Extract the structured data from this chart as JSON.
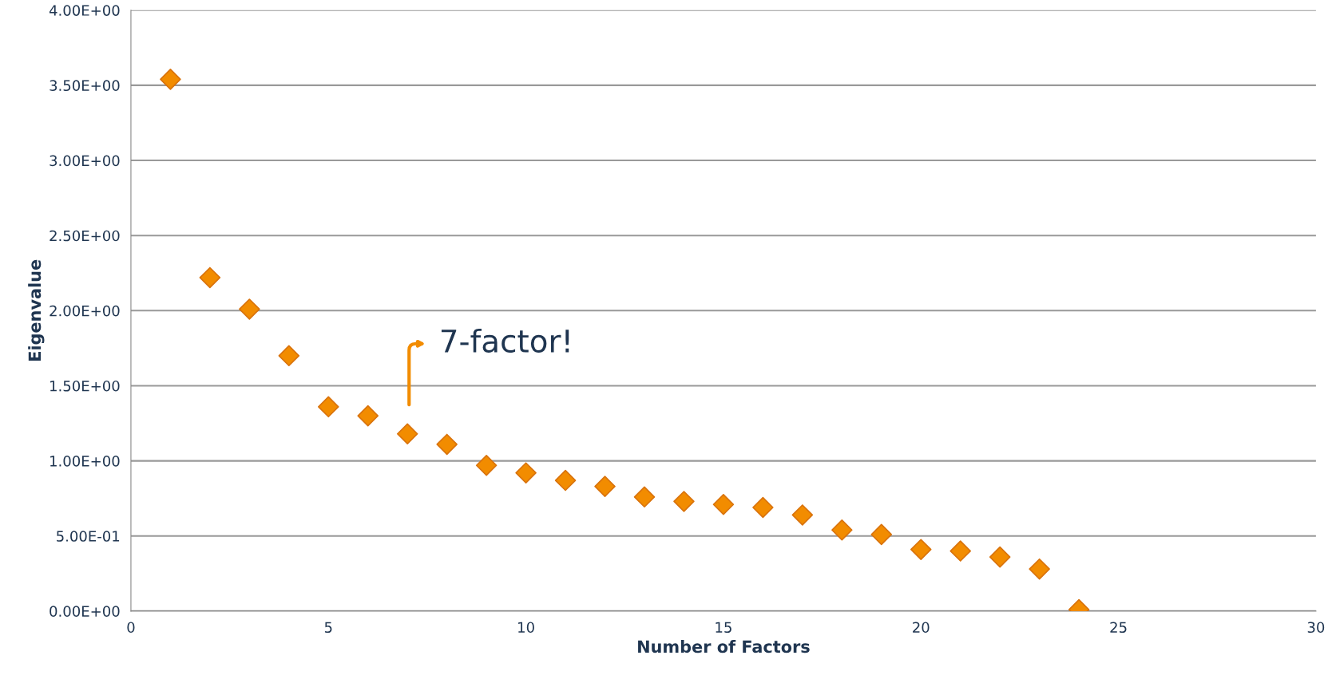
{
  "chart_data": {
    "type": "scatter",
    "xlabel": "Number of Factors",
    "ylabel": "Eigenvalue",
    "x": [
      1,
      2,
      3,
      4,
      5,
      6,
      7,
      8,
      9,
      10,
      11,
      12,
      13,
      14,
      15,
      16,
      17,
      18,
      19,
      20,
      21,
      22,
      23,
      24
    ],
    "series": [
      {
        "color": "#f28c00",
        "values": [
          3.54,
          2.22,
          2.01,
          1.7,
          1.36,
          1.3,
          1.18,
          1.11,
          0.97,
          0.92,
          0.87,
          0.83,
          0.76,
          0.73,
          0.71,
          0.69,
          0.64,
          0.54,
          0.51,
          0.41,
          0.4,
          0.36,
          0.28,
          0.01
        ]
      }
    ],
    "xlim": [
      0,
      30
    ],
    "xticks": [
      0,
      5,
      10,
      15,
      20,
      25,
      30
    ],
    "ylim": [
      0,
      4
    ],
    "yticks": [
      {
        "value": 0,
        "label": "0.00E+00"
      },
      {
        "value": 0.5,
        "label": "5.00E-01"
      },
      {
        "value": 1,
        "label": "1.00E+00"
      },
      {
        "value": 1.5,
        "label": "1.50E+00"
      },
      {
        "value": 2,
        "label": "2.00E+00"
      },
      {
        "value": 2.5,
        "label": "2.50E+00"
      },
      {
        "value": 3,
        "label": "3.00E+00"
      },
      {
        "value": 3.5,
        "label": "3.50E+00"
      },
      {
        "value": 4,
        "label": "4.00E+00"
      }
    ],
    "grid": "y",
    "marker": "diamond",
    "legend": false,
    "annotations": [
      "7-factor!"
    ]
  }
}
